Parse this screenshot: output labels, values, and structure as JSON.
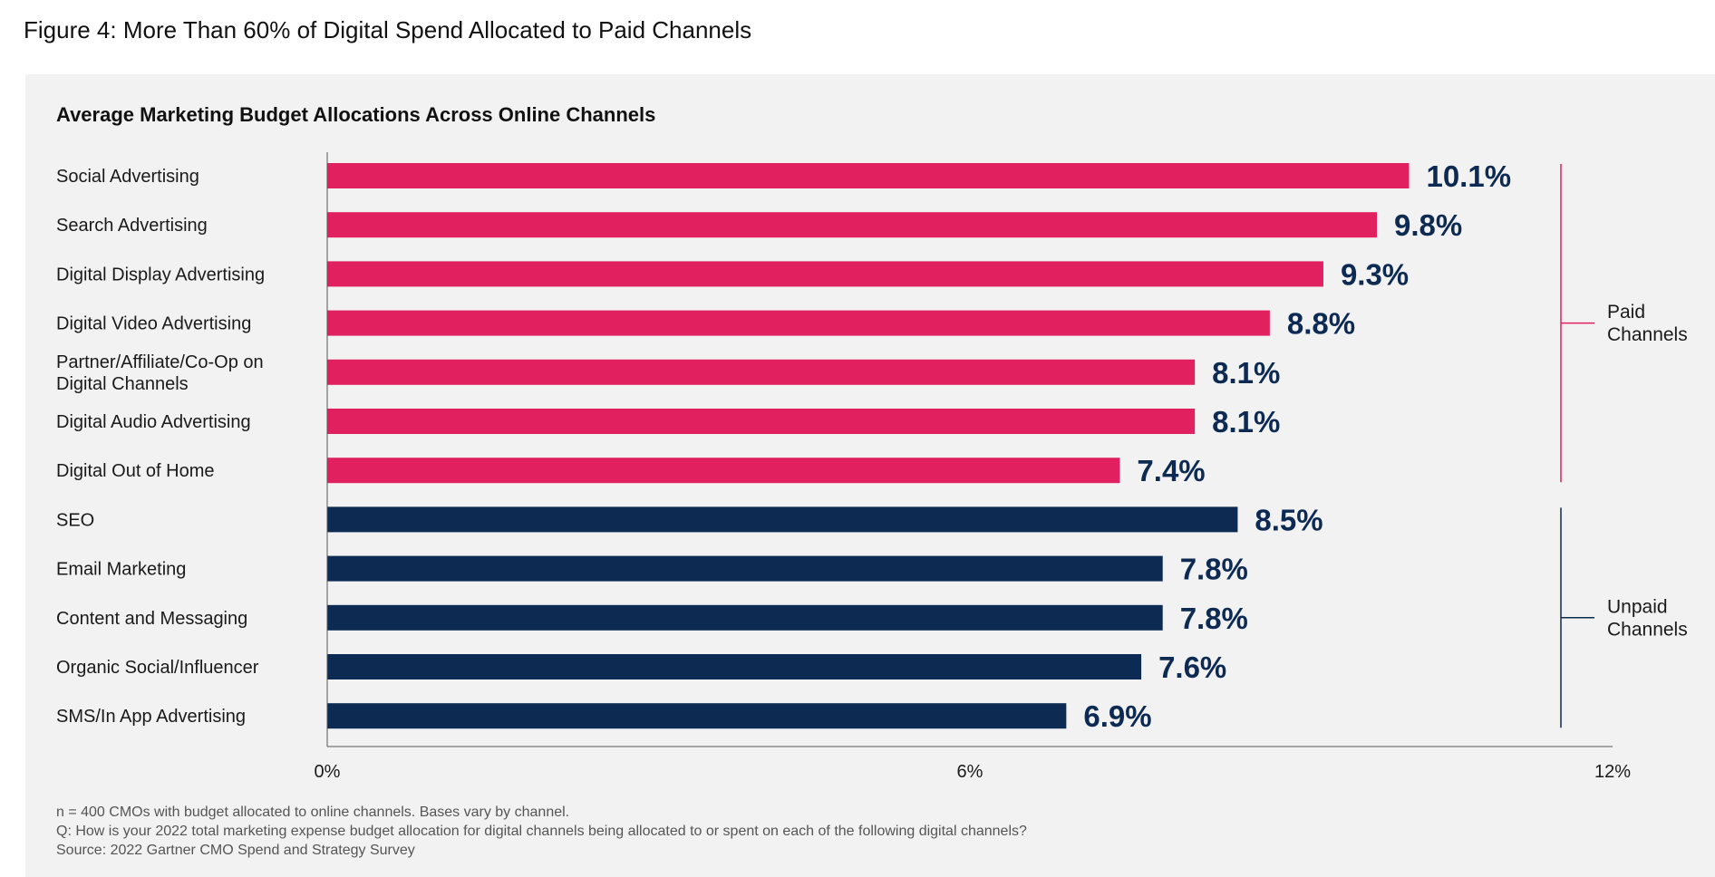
{
  "figure_title": "Figure 4: More Than 60% of Digital Spend Allocated to Paid Channels",
  "chart_data": {
    "type": "bar",
    "orientation": "horizontal",
    "title": "Average Marketing Budget Allocations Across Online Channels",
    "categories": [
      "Social Advertising",
      "Search Advertising",
      "Digital Display Advertising",
      "Digital Video Advertising",
      "Partner/Affiliate/Co-Op on Digital Channels",
      "Digital Audio Advertising",
      "Digital Out of Home",
      "SEO",
      "Email Marketing",
      "Content and Messaging",
      "Organic Social/Influencer",
      "SMS/In App Advertising"
    ],
    "category_lines": [
      [
        "Social Advertising"
      ],
      [
        "Search Advertising"
      ],
      [
        "Digital Display Advertising"
      ],
      [
        "Digital Video Advertising"
      ],
      [
        "Partner/Affiliate/Co-Op on",
        "Digital Channels"
      ],
      [
        "Digital Audio Advertising"
      ],
      [
        "Digital Out of Home"
      ],
      [
        "SEO"
      ],
      [
        "Email Marketing"
      ],
      [
        "Content and Messaging"
      ],
      [
        "Organic Social/Influencer"
      ],
      [
        "SMS/In App Advertising"
      ]
    ],
    "values": [
      10.1,
      9.8,
      9.3,
      8.8,
      8.1,
      8.1,
      7.4,
      8.5,
      7.8,
      7.8,
      7.6,
      6.9
    ],
    "value_labels": [
      "10.1%",
      "9.8%",
      "9.3%",
      "8.8%",
      "8.1%",
      "8.1%",
      "7.4%",
      "8.5%",
      "7.8%",
      "7.8%",
      "7.6%",
      "6.9%"
    ],
    "groups": [
      {
        "label_lines": [
          "Paid",
          "Channels"
        ],
        "start": 0,
        "end": 6,
        "color": "#e0205f"
      },
      {
        "label_lines": [
          "Unpaid",
          "Channels"
        ],
        "start": 7,
        "end": 11,
        "color": "#0d2a52"
      }
    ],
    "xlim": [
      0,
      12
    ],
    "xticks": [
      0,
      6,
      12
    ],
    "xtick_labels": [
      "0%",
      "6%",
      "12%"
    ],
    "grid": false,
    "legend": "none"
  },
  "footnotes": [
    "n = 400 CMOs with budget allocated to online channels. Bases vary by channel.",
    "Q: How is your 2022 total marketing expense budget allocation for digital channels being allocated to or spent on each of the following digital channels?",
    "Source: 2022 Gartner CMO Spend and Strategy Survey"
  ],
  "colors": {
    "paid": "#e0205f",
    "unpaid": "#0d2a52",
    "panel_bg": "#f2f2f2"
  }
}
